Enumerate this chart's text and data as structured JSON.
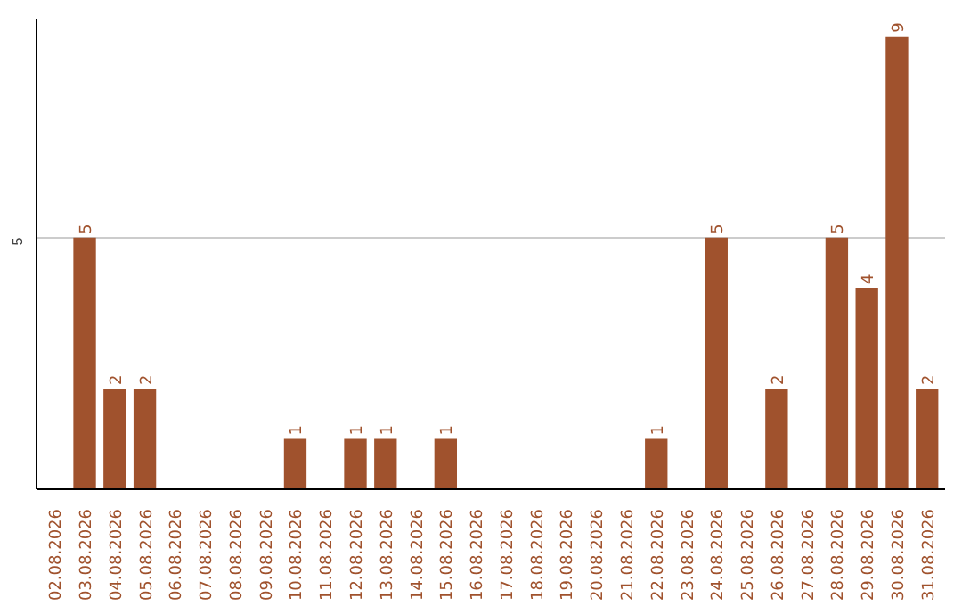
{
  "chart_data": {
    "type": "bar",
    "categories": [
      "02.08.2026",
      "03.08.2026",
      "04.08.2026",
      "05.08.2026",
      "06.08.2026",
      "07.08.2026",
      "08.08.2026",
      "09.08.2026",
      "10.08.2026",
      "11.08.2026",
      "12.08.2026",
      "13.08.2026",
      "14.08.2026",
      "15.08.2026",
      "16.08.2026",
      "17.08.2026",
      "18.08.2026",
      "19.08.2026",
      "20.08.2026",
      "21.08.2026",
      "22.08.2026",
      "23.08.2026",
      "24.08.2026",
      "25.08.2026",
      "26.08.2026",
      "27.08.2026",
      "28.08.2026",
      "29.08.2026",
      "30.08.2026",
      "31.08.2026"
    ],
    "values": [
      0,
      5,
      2,
      2,
      0,
      0,
      0,
      0,
      1,
      0,
      1,
      1,
      0,
      1,
      0,
      0,
      0,
      0,
      0,
      0,
      1,
      0,
      5,
      0,
      2,
      0,
      5,
      4,
      9,
      2
    ],
    "value_labels": [
      null,
      "5",
      "2",
      "2",
      null,
      null,
      null,
      null,
      "1",
      null,
      "1",
      "1",
      null,
      "1",
      null,
      null,
      null,
      null,
      null,
      null,
      "1",
      null,
      "5",
      null,
      "2",
      null,
      "5",
      "4",
      "9",
      "2"
    ],
    "color": "#a0522d",
    "ylim": [
      0,
      9.35
    ],
    "yticks": [
      5
    ],
    "grid": "y"
  }
}
